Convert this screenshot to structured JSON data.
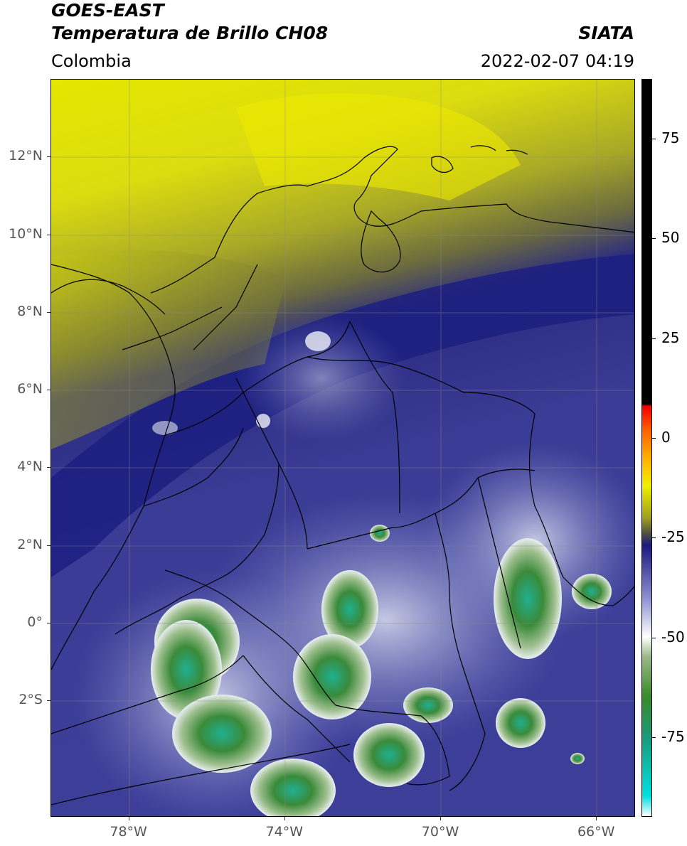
{
  "header": {
    "title_line1": "GOES-EAST",
    "title_line2": "Temperatura de Brillo CH08",
    "org": "SIATA",
    "region": "Colombia",
    "datetime": "2022-02-07 04:19"
  },
  "map": {
    "lon_range": [
      -80,
      -65
    ],
    "lat_range": [
      -5,
      14
    ],
    "lat_ticks": [
      {
        "value": 12,
        "label": "12°N"
      },
      {
        "value": 10,
        "label": "10°N"
      },
      {
        "value": 8,
        "label": "8°N"
      },
      {
        "value": 6,
        "label": "6°N"
      },
      {
        "value": 4,
        "label": "4°N"
      },
      {
        "value": 2,
        "label": "2°N"
      },
      {
        "value": 0,
        "label": "0°"
      },
      {
        "value": -2,
        "label": "2°S"
      }
    ],
    "lon_ticks": [
      {
        "value": -78,
        "label": "78°W"
      },
      {
        "value": -74,
        "label": "74°W"
      },
      {
        "value": -70,
        "label": "70°W"
      },
      {
        "value": -66,
        "label": "66°W"
      }
    ]
  },
  "colorbar": {
    "range": [
      -95,
      90
    ],
    "ticks": [
      {
        "value": 75,
        "label": "75"
      },
      {
        "value": 50,
        "label": "50"
      },
      {
        "value": 25,
        "label": "25"
      },
      {
        "value": 0,
        "label": "0"
      },
      {
        "value": -25,
        "label": "-25"
      },
      {
        "value": -50,
        "label": "-50"
      },
      {
        "value": -75,
        "label": "-75"
      }
    ],
    "stops": [
      {
        "value": -95,
        "color": "#ffffff"
      },
      {
        "value": -90,
        "color": "#00e0e0"
      },
      {
        "value": -75,
        "color": "#1a9a7a"
      },
      {
        "value": -65,
        "color": "#3a8a2a"
      },
      {
        "value": -55,
        "color": "#9ab888"
      },
      {
        "value": -50,
        "color": "#ffffff"
      },
      {
        "value": -40,
        "color": "#8a8ed0"
      },
      {
        "value": -27,
        "color": "#1a1a80"
      },
      {
        "value": -24,
        "color": "#505040"
      },
      {
        "value": -20,
        "color": "#a0a020"
      },
      {
        "value": -12,
        "color": "#f0f000"
      },
      {
        "value": -5,
        "color": "#ffb000"
      },
      {
        "value": 2,
        "color": "#ff6000"
      },
      {
        "value": 8,
        "color": "#f00000"
      },
      {
        "value": 8.5,
        "color": "#000000"
      },
      {
        "value": 90,
        "color": "#000000"
      }
    ]
  }
}
